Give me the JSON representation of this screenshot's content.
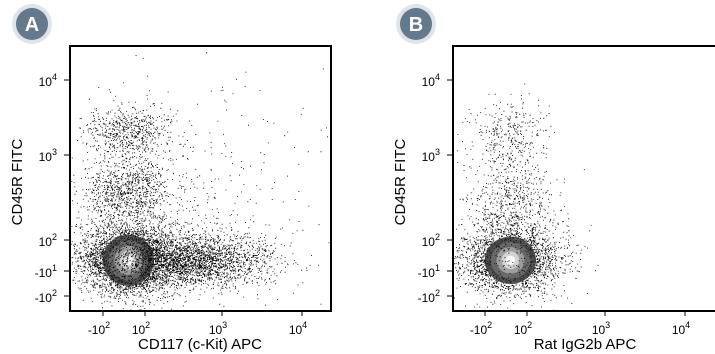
{
  "theme": {
    "badge_fill": "#64798a",
    "badge_ring": "#dfe4e8",
    "badge_text": "#ffffff",
    "dot_color": "#000000",
    "core_color": "#ffffff",
    "axis_color": "#000000"
  },
  "chart_data": [
    {
      "type": "scatter",
      "panel_label": "A",
      "title": "",
      "xlabel": "CD117 (c-Kit) APC",
      "ylabel": "CD45R FITC",
      "x_scale": "biexponential",
      "y_scale": "biexponential",
      "xlim": [
        -300,
        30000
      ],
      "ylim": [
        -300,
        30000
      ],
      "x_ticks": [
        {
          "value": -100,
          "exp": "2",
          "prefix": "-10"
        },
        {
          "value": 100,
          "exp": "2",
          "prefix": "10"
        },
        {
          "value": 1000,
          "exp": "3",
          "prefix": "10"
        },
        {
          "value": 10000,
          "exp": "4",
          "prefix": "10"
        }
      ],
      "y_ticks": [
        {
          "value": -100,
          "exp": "2",
          "prefix": "-10"
        },
        {
          "value": -10,
          "exp": "1",
          "prefix": "-10"
        },
        {
          "value": 100,
          "exp": "2",
          "prefix": "10"
        },
        {
          "value": 1000,
          "exp": "3",
          "prefix": "10"
        },
        {
          "value": 10000,
          "exp": "4",
          "prefix": "10"
        }
      ],
      "grid": false,
      "populations": [
        {
          "x": 10,
          "y": 10,
          "sx": 0.18,
          "sy": 0.13,
          "n": 3200,
          "core": true
        },
        {
          "x": 400,
          "y": 10,
          "sx": 0.3,
          "sy": 0.1,
          "n": 2600,
          "core": false
        },
        {
          "x": 10,
          "y": 400,
          "sx": 0.16,
          "sy": 0.12,
          "n": 800,
          "core": false
        },
        {
          "x": 10,
          "y": 2000,
          "sx": 0.16,
          "sy": 0.1,
          "n": 650,
          "core": false
        },
        {
          "x": 20,
          "y": 80,
          "sx": 0.25,
          "sy": 0.22,
          "n": 700,
          "core": false
        },
        {
          "x": 300,
          "y": 300,
          "sx": 0.55,
          "sy": 0.45,
          "n": 450,
          "core": false
        }
      ]
    },
    {
      "type": "scatter",
      "panel_label": "B",
      "title": "",
      "xlabel": "Rat IgG2b APC",
      "ylabel": "CD45R FITC",
      "x_scale": "biexponential",
      "y_scale": "biexponential",
      "xlim": [
        -300,
        30000
      ],
      "ylim": [
        -300,
        30000
      ],
      "x_ticks": [
        {
          "value": -100,
          "exp": "2",
          "prefix": "-10"
        },
        {
          "value": 100,
          "exp": "2",
          "prefix": "10"
        },
        {
          "value": 1000,
          "exp": "3",
          "prefix": "10"
        },
        {
          "value": 10000,
          "exp": "4",
          "prefix": "10"
        }
      ],
      "y_ticks": [
        {
          "value": -100,
          "exp": "2",
          "prefix": "-10"
        },
        {
          "value": -10,
          "exp": "1",
          "prefix": "-10"
        },
        {
          "value": 100,
          "exp": "2",
          "prefix": "10"
        },
        {
          "value": 1000,
          "exp": "3",
          "prefix": "10"
        },
        {
          "value": 10000,
          "exp": "4",
          "prefix": "10"
        }
      ],
      "grid": false,
      "populations": [
        {
          "x": 10,
          "y": 10,
          "sx": 0.18,
          "sy": 0.12,
          "n": 2600,
          "core": true
        },
        {
          "x": 10,
          "y": 300,
          "sx": 0.16,
          "sy": 0.18,
          "n": 600,
          "core": false
        },
        {
          "x": 10,
          "y": 2000,
          "sx": 0.14,
          "sy": 0.12,
          "n": 300,
          "core": false
        },
        {
          "x": 30,
          "y": 60,
          "sx": 0.25,
          "sy": 0.22,
          "n": 350,
          "core": false
        }
      ]
    }
  ]
}
